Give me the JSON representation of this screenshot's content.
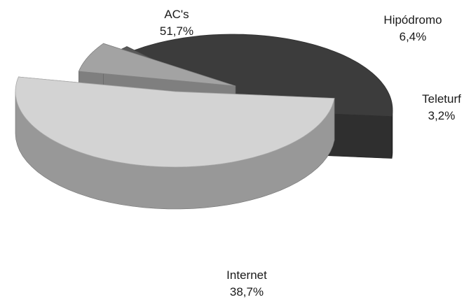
{
  "chart_data": {
    "type": "pie",
    "style": "3d-exploded",
    "slices": [
      {
        "name": "AC's",
        "value": 51.7,
        "value_label": "51,7%",
        "color": "#d3d3d3"
      },
      {
        "name": "Hipódromo",
        "value": 6.4,
        "value_label": "6,4%",
        "color": "#a3a3a3"
      },
      {
        "name": "Teleturf",
        "value": 3.2,
        "value_label": "3,2%",
        "color": "#5a5a5a"
      },
      {
        "name": "Internet",
        "value": 38.7,
        "value_label": "38,7%",
        "color": "#3c3c3c"
      }
    ]
  }
}
